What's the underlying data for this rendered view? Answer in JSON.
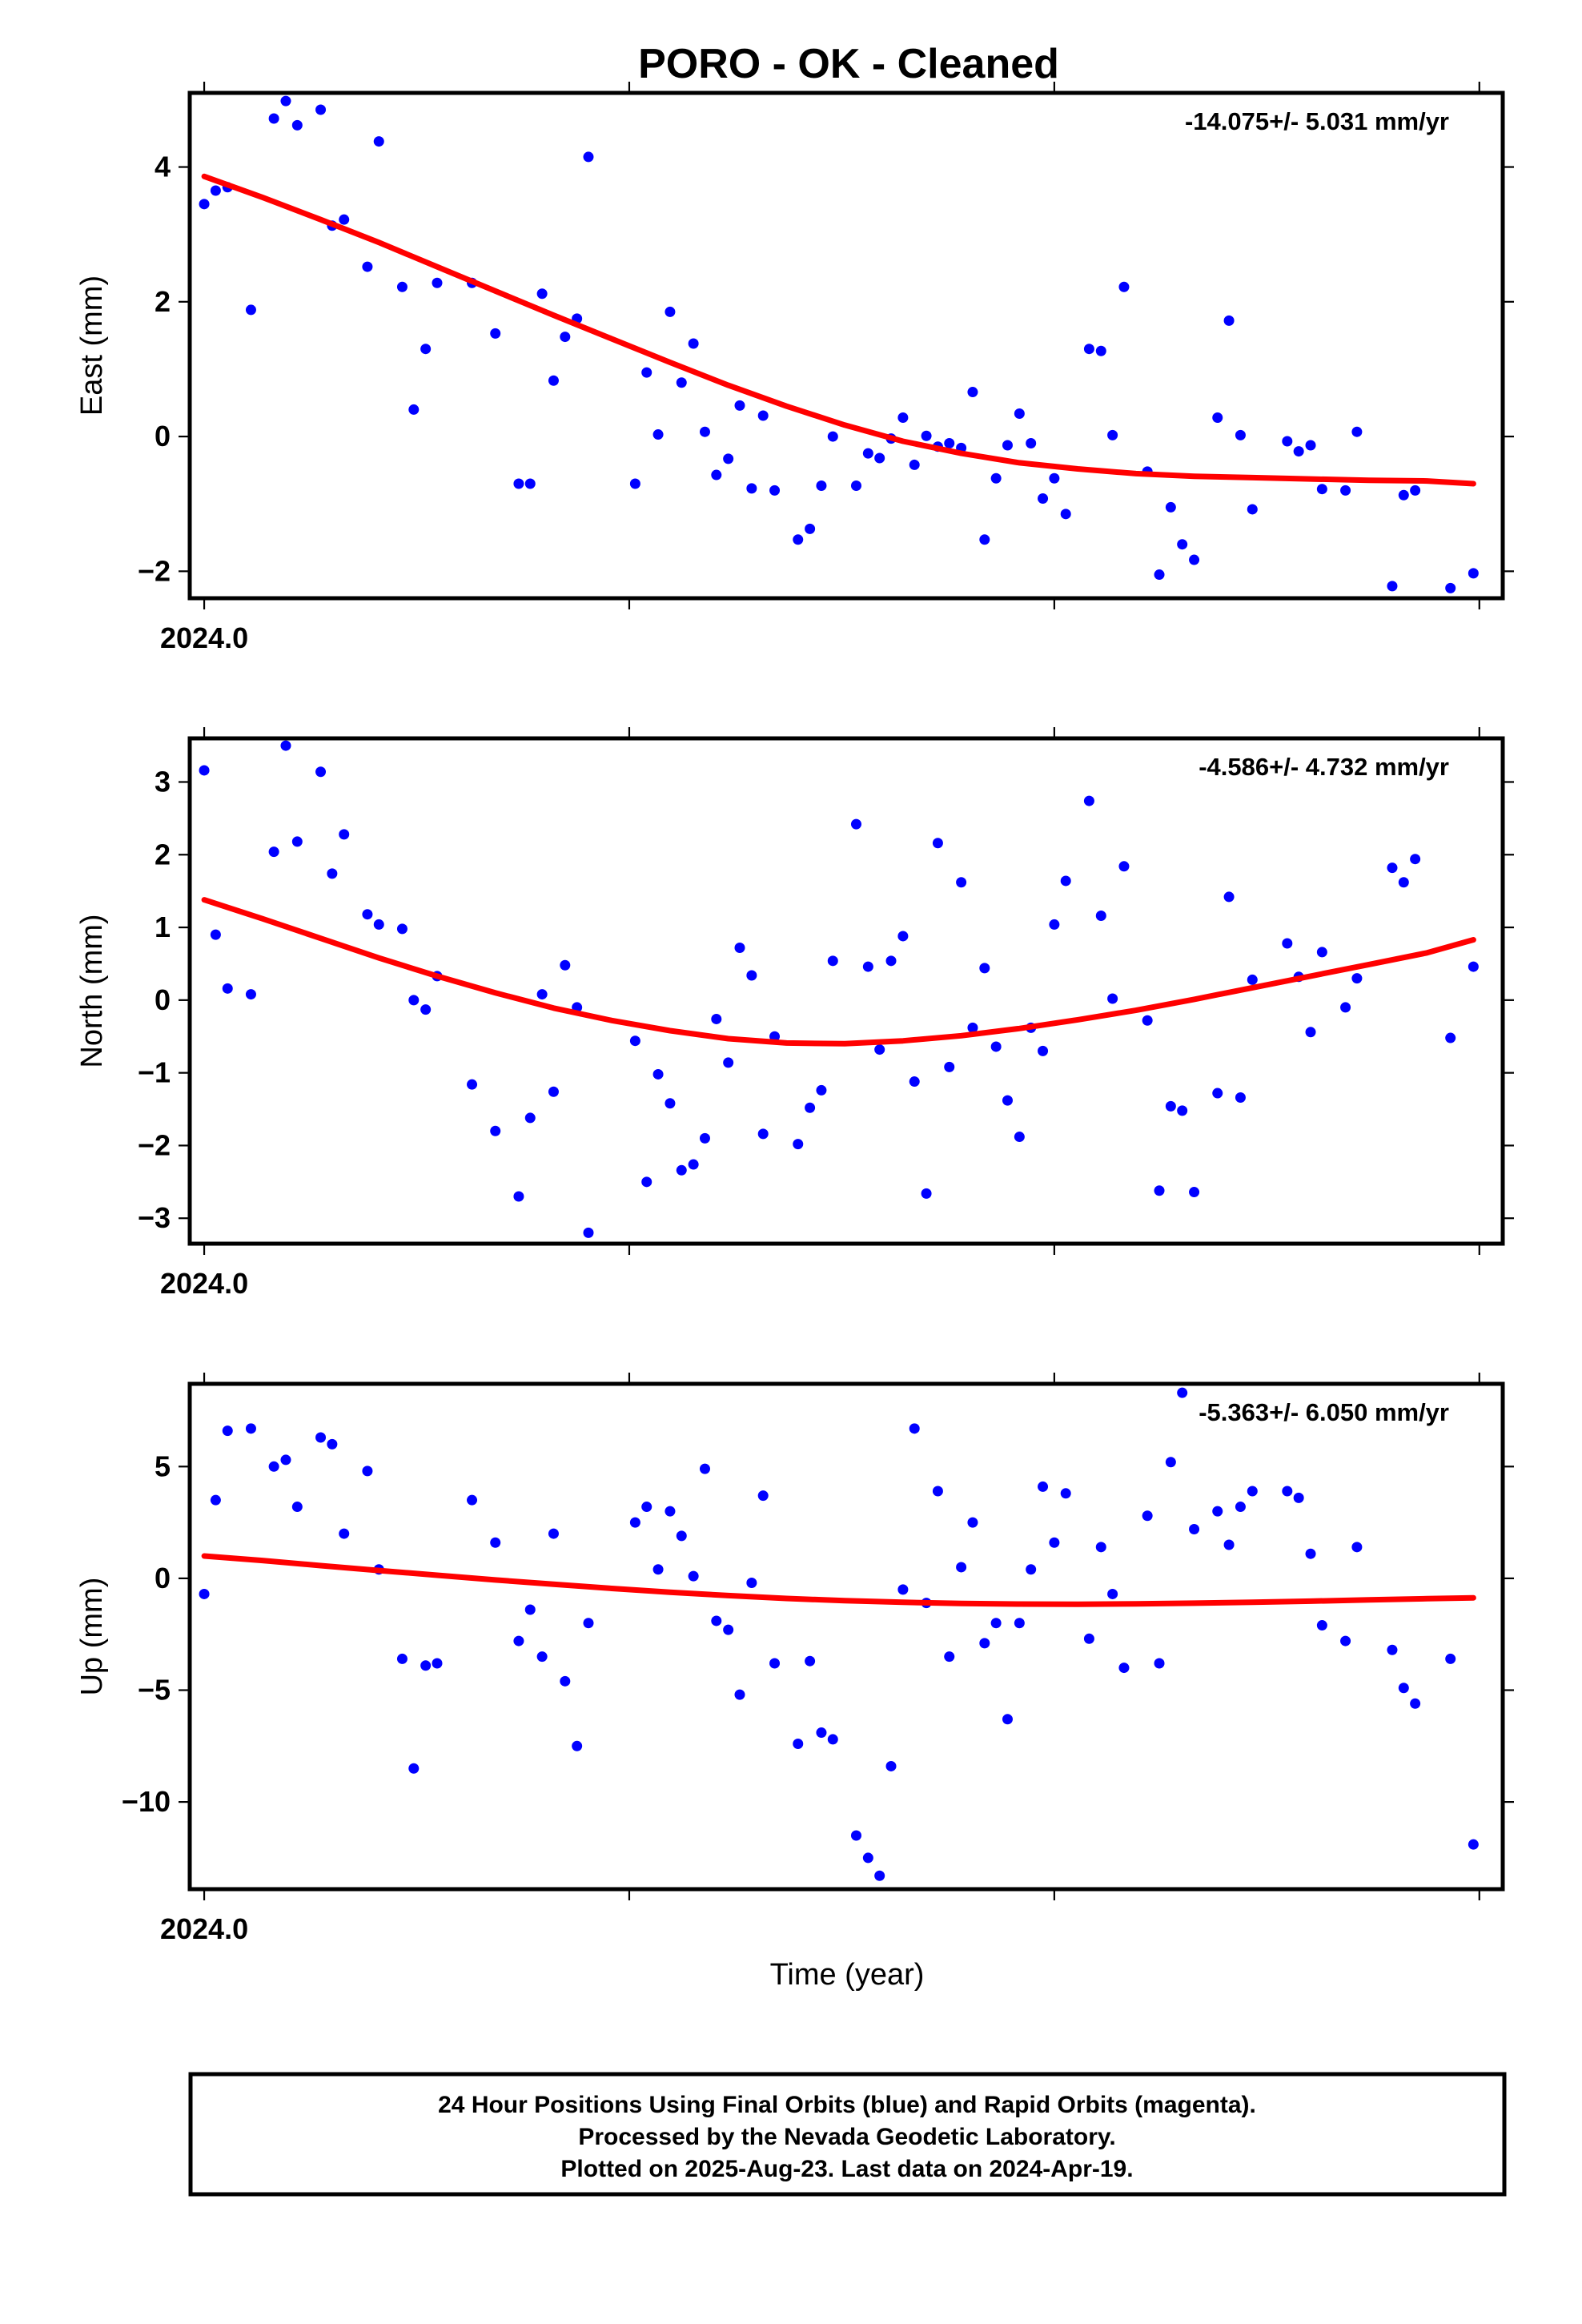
{
  "colors": {
    "points": "#0000ff",
    "fit": "#ff0000",
    "frame": "#000000"
  },
  "title": "PORO  - OK - Cleaned",
  "xlabel": "Time (year)",
  "footer": {
    "line1": "24 Hour Positions Using Final Orbits (blue) and Rapid Orbits (magenta).",
    "line2": "Processed by the Nevada Geodetic Laboratory.",
    "line3": "Plotted on 2025-Aug-23. Last data on 2024-Apr-19."
  },
  "chart_data": [
    {
      "type": "scatter",
      "ylabel": "East (mm)",
      "rate_label": "-14.075+/- 5.031 mm/yr",
      "xlim": [
        -0.0034,
        0.3055
      ],
      "ylim": [
        -2.4,
        5.1
      ],
      "x_ticks": [
        0,
        0.1,
        0.2,
        0.3
      ],
      "x_tick_labels": [
        "2024.0",
        "",
        "",
        ""
      ],
      "y_ticks": [
        -2,
        0,
        2,
        4
      ],
      "y_tick_labels": [
        "−2",
        "0",
        "2",
        "4"
      ],
      "points": [
        [
          0.0,
          3.45
        ],
        [
          0.0027,
          3.65
        ],
        [
          0.0055,
          3.7
        ],
        [
          0.011,
          1.88
        ],
        [
          0.0164,
          4.72
        ],
        [
          0.0192,
          4.98
        ],
        [
          0.0219,
          4.62
        ],
        [
          0.0274,
          4.85
        ],
        [
          0.0301,
          3.13
        ],
        [
          0.0329,
          3.22
        ],
        [
          0.0384,
          2.52
        ],
        [
          0.0411,
          4.38
        ],
        [
          0.0466,
          2.22
        ],
        [
          0.0493,
          0.4
        ],
        [
          0.0521,
          1.3
        ],
        [
          0.0548,
          2.28
        ],
        [
          0.063,
          2.28
        ],
        [
          0.0685,
          1.53
        ],
        [
          0.074,
          -0.7
        ],
        [
          0.0767,
          -0.7
        ],
        [
          0.0795,
          2.12
        ],
        [
          0.0822,
          0.83
        ],
        [
          0.0849,
          1.48
        ],
        [
          0.0877,
          1.75
        ],
        [
          0.0904,
          4.15
        ],
        [
          0.1014,
          -0.7
        ],
        [
          0.1041,
          0.95
        ],
        [
          0.1068,
          0.03
        ],
        [
          0.1096,
          1.85
        ],
        [
          0.1123,
          0.8
        ],
        [
          0.1151,
          1.38
        ],
        [
          0.1178,
          0.07
        ],
        [
          0.1205,
          -0.57
        ],
        [
          0.1233,
          -0.33
        ],
        [
          0.126,
          0.46
        ],
        [
          0.1288,
          -0.77
        ],
        [
          0.1315,
          0.31
        ],
        [
          0.1342,
          -0.8
        ],
        [
          0.1397,
          -1.53
        ],
        [
          0.1425,
          -1.37
        ],
        [
          0.1452,
          -0.73
        ],
        [
          0.1479,
          -0.0
        ],
        [
          0.1534,
          -0.73
        ],
        [
          0.1562,
          -0.25
        ],
        [
          0.1589,
          -0.32
        ],
        [
          0.1616,
          -0.03
        ],
        [
          0.1644,
          0.28
        ],
        [
          0.1671,
          -0.42
        ],
        [
          0.1699,
          0.01
        ],
        [
          0.1726,
          -0.15
        ],
        [
          0.1753,
          -0.1
        ],
        [
          0.1781,
          -0.17
        ],
        [
          0.1808,
          0.66
        ],
        [
          0.1836,
          -1.53
        ],
        [
          0.1863,
          -0.62
        ],
        [
          0.189,
          -0.13
        ],
        [
          0.1918,
          0.34
        ],
        [
          0.1945,
          -0.1
        ],
        [
          0.1973,
          -0.92
        ],
        [
          0.2,
          -0.62
        ],
        [
          0.2027,
          -1.15
        ],
        [
          0.2082,
          1.3
        ],
        [
          0.211,
          1.27
        ],
        [
          0.2137,
          0.02
        ],
        [
          0.2164,
          2.22
        ],
        [
          0.2219,
          -0.52
        ],
        [
          0.2247,
          -2.05
        ],
        [
          0.2274,
          -1.05
        ],
        [
          0.2301,
          -1.6
        ],
        [
          0.2329,
          -1.83
        ],
        [
          0.2384,
          0.28
        ],
        [
          0.2411,
          1.72
        ],
        [
          0.2438,
          0.02
        ],
        [
          0.2466,
          -1.08
        ],
        [
          0.2548,
          -0.07
        ],
        [
          0.2575,
          -0.22
        ],
        [
          0.2603,
          -0.13
        ],
        [
          0.263,
          -0.78
        ],
        [
          0.2685,
          -0.8
        ],
        [
          0.2712,
          0.07
        ],
        [
          0.2795,
          -2.22
        ],
        [
          0.2822,
          -0.87
        ],
        [
          0.2849,
          -0.8
        ],
        [
          0.2932,
          -2.25
        ],
        [
          0.2986,
          -2.03
        ]
      ],
      "fit": [
        [
          0.0,
          3.86
        ],
        [
          0.0137,
          3.55
        ],
        [
          0.0274,
          3.22
        ],
        [
          0.0411,
          2.88
        ],
        [
          0.0548,
          2.52
        ],
        [
          0.0685,
          2.16
        ],
        [
          0.0822,
          1.8
        ],
        [
          0.0959,
          1.45
        ],
        [
          0.1096,
          1.1
        ],
        [
          0.1233,
          0.76
        ],
        [
          0.137,
          0.45
        ],
        [
          0.1507,
          0.17
        ],
        [
          0.1644,
          -0.07
        ],
        [
          0.1781,
          -0.25
        ],
        [
          0.1918,
          -0.39
        ],
        [
          0.2055,
          -0.48
        ],
        [
          0.2192,
          -0.55
        ],
        [
          0.2329,
          -0.59
        ],
        [
          0.2466,
          -0.61
        ],
        [
          0.2603,
          -0.63
        ],
        [
          0.274,
          -0.65
        ],
        [
          0.2877,
          -0.66
        ],
        [
          0.2986,
          -0.7
        ]
      ]
    },
    {
      "type": "scatter",
      "ylabel": "North (mm)",
      "rate_label": "-4.586+/- 4.732 mm/yr",
      "xlim": [
        -0.0034,
        0.3055
      ],
      "ylim": [
        -3.35,
        3.6
      ],
      "x_ticks": [
        0,
        0.1,
        0.2,
        0.3
      ],
      "x_tick_labels": [
        "2024.0",
        "",
        "",
        ""
      ],
      "y_ticks": [
        -3,
        -2,
        -1,
        0,
        1,
        2,
        3
      ],
      "y_tick_labels": [
        "−3",
        "−2",
        "−1",
        "0",
        "1",
        "2",
        "3"
      ],
      "points": [
        [
          0.0,
          3.16
        ],
        [
          0.0027,
          0.9
        ],
        [
          0.0055,
          0.16
        ],
        [
          0.011,
          0.08
        ],
        [
          0.0164,
          2.04
        ],
        [
          0.0192,
          3.5
        ],
        [
          0.0219,
          2.18
        ],
        [
          0.0274,
          3.14
        ],
        [
          0.0301,
          1.74
        ],
        [
          0.0329,
          2.28
        ],
        [
          0.0384,
          1.18
        ],
        [
          0.0411,
          1.04
        ],
        [
          0.0466,
          0.98
        ],
        [
          0.0493,
          0.0
        ],
        [
          0.0521,
          -0.13
        ],
        [
          0.0548,
          0.33
        ],
        [
          0.063,
          -1.16
        ],
        [
          0.0685,
          -1.8
        ],
        [
          0.074,
          -2.7
        ],
        [
          0.0767,
          -1.62
        ],
        [
          0.0795,
          0.08
        ],
        [
          0.0822,
          -1.26
        ],
        [
          0.0849,
          0.48
        ],
        [
          0.0877,
          -0.1
        ],
        [
          0.0904,
          -3.2
        ],
        [
          0.1014,
          -0.56
        ],
        [
          0.1041,
          -2.5
        ],
        [
          0.1068,
          -1.02
        ],
        [
          0.1096,
          -1.42
        ],
        [
          0.1123,
          -2.34
        ],
        [
          0.1151,
          -2.26
        ],
        [
          0.1178,
          -1.9
        ],
        [
          0.1205,
          -0.26
        ],
        [
          0.1233,
          -0.86
        ],
        [
          0.126,
          0.72
        ],
        [
          0.1288,
          0.34
        ],
        [
          0.1315,
          -1.84
        ],
        [
          0.1342,
          -0.5
        ],
        [
          0.1397,
          -1.98
        ],
        [
          0.1425,
          -1.48
        ],
        [
          0.1452,
          -1.24
        ],
        [
          0.1479,
          0.54
        ],
        [
          0.1534,
          2.42
        ],
        [
          0.1562,
          0.46
        ],
        [
          0.1589,
          -0.68
        ],
        [
          0.1616,
          0.54
        ],
        [
          0.1644,
          0.88
        ],
        [
          0.1671,
          -1.12
        ],
        [
          0.1699,
          -2.66
        ],
        [
          0.1726,
          2.16
        ],
        [
          0.1753,
          -0.92
        ],
        [
          0.1781,
          1.62
        ],
        [
          0.1808,
          -0.38
        ],
        [
          0.1836,
          0.44
        ],
        [
          0.1863,
          -0.64
        ],
        [
          0.189,
          -1.38
        ],
        [
          0.1918,
          -1.88
        ],
        [
          0.1945,
          -0.38
        ],
        [
          0.1973,
          -0.7
        ],
        [
          0.2,
          1.04
        ],
        [
          0.2027,
          1.64
        ],
        [
          0.2082,
          2.74
        ],
        [
          0.211,
          1.16
        ],
        [
          0.2137,
          0.02
        ],
        [
          0.2164,
          1.84
        ],
        [
          0.2219,
          -0.28
        ],
        [
          0.2247,
          -2.62
        ],
        [
          0.2274,
          -1.46
        ],
        [
          0.2301,
          -1.52
        ],
        [
          0.2329,
          -2.64
        ],
        [
          0.2384,
          -1.28
        ],
        [
          0.2411,
          1.42
        ],
        [
          0.2438,
          -1.34
        ],
        [
          0.2466,
          0.28
        ],
        [
          0.2548,
          0.78
        ],
        [
          0.2575,
          0.32
        ],
        [
          0.2603,
          -0.44
        ],
        [
          0.263,
          0.66
        ],
        [
          0.2685,
          -0.1
        ],
        [
          0.2712,
          0.3
        ],
        [
          0.2795,
          1.82
        ],
        [
          0.2822,
          1.62
        ],
        [
          0.2849,
          1.94
        ],
        [
          0.2932,
          -0.52
        ],
        [
          0.2986,
          0.46
        ]
      ],
      "fit": [
        [
          0.0,
          1.38
        ],
        [
          0.0137,
          1.12
        ],
        [
          0.0274,
          0.85
        ],
        [
          0.0411,
          0.58
        ],
        [
          0.0548,
          0.33
        ],
        [
          0.0685,
          0.1
        ],
        [
          0.0822,
          -0.11
        ],
        [
          0.0959,
          -0.28
        ],
        [
          0.1096,
          -0.42
        ],
        [
          0.1233,
          -0.53
        ],
        [
          0.137,
          -0.59
        ],
        [
          0.1507,
          -0.6
        ],
        [
          0.1644,
          -0.56
        ],
        [
          0.1781,
          -0.49
        ],
        [
          0.1918,
          -0.39
        ],
        [
          0.2055,
          -0.27
        ],
        [
          0.2192,
          -0.14
        ],
        [
          0.2329,
          0.01
        ],
        [
          0.2466,
          0.17
        ],
        [
          0.2603,
          0.33
        ],
        [
          0.274,
          0.49
        ],
        [
          0.2877,
          0.65
        ],
        [
          0.2986,
          0.83
        ]
      ]
    },
    {
      "type": "scatter",
      "ylabel": "Up (mm)",
      "rate_label": "-5.363+/- 6.050 mm/yr",
      "xlim": [
        -0.0034,
        0.3055
      ],
      "ylim": [
        -13.9,
        8.7
      ],
      "x_ticks": [
        0,
        0.1,
        0.2,
        0.3
      ],
      "x_tick_labels": [
        "2024.0",
        "",
        "",
        ""
      ],
      "y_ticks": [
        -10,
        -5,
        0,
        5
      ],
      "y_tick_labels": [
        "−10",
        "−5",
        "0",
        "5"
      ],
      "points": [
        [
          0.0,
          -0.7
        ],
        [
          0.0027,
          3.5
        ],
        [
          0.0055,
          6.6
        ],
        [
          0.011,
          6.7
        ],
        [
          0.0164,
          5.0
        ],
        [
          0.0192,
          5.3
        ],
        [
          0.0219,
          3.2
        ],
        [
          0.0274,
          6.3
        ],
        [
          0.0301,
          6.0
        ],
        [
          0.0329,
          2.0
        ],
        [
          0.0384,
          4.8
        ],
        [
          0.0411,
          0.4
        ],
        [
          0.0466,
          -3.6
        ],
        [
          0.0493,
          -8.5
        ],
        [
          0.0521,
          -3.9
        ],
        [
          0.0548,
          -3.8
        ],
        [
          0.063,
          3.5
        ],
        [
          0.0685,
          1.6
        ],
        [
          0.074,
          -2.8
        ],
        [
          0.0767,
          -1.4
        ],
        [
          0.0795,
          -3.5
        ],
        [
          0.0822,
          2.0
        ],
        [
          0.0849,
          -4.6
        ],
        [
          0.0877,
          -7.5
        ],
        [
          0.0904,
          -2.0
        ],
        [
          0.1014,
          2.5
        ],
        [
          0.1041,
          3.2
        ],
        [
          0.1068,
          0.4
        ],
        [
          0.1096,
          3.0
        ],
        [
          0.1123,
          1.9
        ],
        [
          0.1151,
          0.1
        ],
        [
          0.1178,
          4.9
        ],
        [
          0.1205,
          -1.9
        ],
        [
          0.1233,
          -2.3
        ],
        [
          0.126,
          -5.2
        ],
        [
          0.1288,
          -0.2
        ],
        [
          0.1315,
          3.7
        ],
        [
          0.1342,
          -3.8
        ],
        [
          0.1397,
          -7.4
        ],
        [
          0.1425,
          -3.7
        ],
        [
          0.1452,
          -6.9
        ],
        [
          0.1479,
          -7.2
        ],
        [
          0.1534,
          -11.5
        ],
        [
          0.1562,
          -12.5
        ],
        [
          0.1589,
          -13.3
        ],
        [
          0.1616,
          -8.4
        ],
        [
          0.1644,
          -0.5
        ],
        [
          0.1671,
          6.7
        ],
        [
          0.1699,
          -1.1
        ],
        [
          0.1726,
          3.9
        ],
        [
          0.1753,
          -3.5
        ],
        [
          0.1781,
          0.5
        ],
        [
          0.1808,
          2.5
        ],
        [
          0.1836,
          -2.9
        ],
        [
          0.1863,
          -2.0
        ],
        [
          0.189,
          -6.3
        ],
        [
          0.1918,
          -2.0
        ],
        [
          0.1945,
          0.4
        ],
        [
          0.1973,
          4.1
        ],
        [
          0.2,
          1.6
        ],
        [
          0.2027,
          3.8
        ],
        [
          0.2082,
          -2.7
        ],
        [
          0.211,
          1.4
        ],
        [
          0.2137,
          -0.7
        ],
        [
          0.2164,
          -4.0
        ],
        [
          0.2219,
          2.8
        ],
        [
          0.2247,
          -3.8
        ],
        [
          0.2274,
          5.2
        ],
        [
          0.2301,
          8.3
        ],
        [
          0.2329,
          2.2
        ],
        [
          0.2384,
          3.0
        ],
        [
          0.2411,
          1.5
        ],
        [
          0.2438,
          3.2
        ],
        [
          0.2466,
          3.9
        ],
        [
          0.2548,
          3.9
        ],
        [
          0.2575,
          3.6
        ],
        [
          0.2603,
          1.1
        ],
        [
          0.263,
          -2.1
        ],
        [
          0.2685,
          -2.8
        ],
        [
          0.2712,
          1.4
        ],
        [
          0.2795,
          -3.2
        ],
        [
          0.2822,
          -4.9
        ],
        [
          0.2849,
          -5.6
        ],
        [
          0.2932,
          -3.6
        ],
        [
          0.2986,
          -11.9
        ]
      ],
      "fit": [
        [
          0.0,
          1.0
        ],
        [
          0.0137,
          0.8
        ],
        [
          0.0274,
          0.57
        ],
        [
          0.0411,
          0.35
        ],
        [
          0.0548,
          0.14
        ],
        [
          0.0685,
          -0.07
        ],
        [
          0.0822,
          -0.26
        ],
        [
          0.0959,
          -0.45
        ],
        [
          0.1096,
          -0.62
        ],
        [
          0.1233,
          -0.77
        ],
        [
          0.137,
          -0.9
        ],
        [
          0.1507,
          -1.0
        ],
        [
          0.1644,
          -1.07
        ],
        [
          0.1781,
          -1.12
        ],
        [
          0.1918,
          -1.15
        ],
        [
          0.2055,
          -1.16
        ],
        [
          0.2192,
          -1.14
        ],
        [
          0.2329,
          -1.11
        ],
        [
          0.2466,
          -1.07
        ],
        [
          0.2603,
          -1.02
        ],
        [
          0.274,
          -0.96
        ],
        [
          0.2877,
          -0.91
        ],
        [
          0.2986,
          -0.87
        ]
      ]
    }
  ]
}
